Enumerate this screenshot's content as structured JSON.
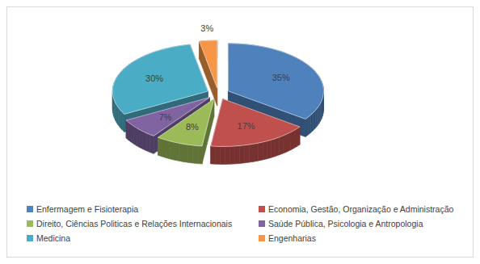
{
  "chart_data": {
    "type": "pie",
    "categories": [
      "Enfermagem e Fisioterapia",
      "Economia, Gestão, Organização e Administração",
      "Direito, Ciências Politicas e Relações Internacionais",
      "Saúde Pública, Psicologia e Antropologia",
      "Medicina",
      "Engenharias"
    ],
    "values": [
      35,
      17,
      8,
      7,
      30,
      3
    ],
    "value_labels": [
      "35%",
      "17%",
      "8%",
      "7%",
      "30%",
      "3%"
    ],
    "colors": [
      "#4f81bd",
      "#c0504d",
      "#9bbb59",
      "#8064a2",
      "#4bacc6",
      "#f79646"
    ],
    "data_labels": true,
    "legend": "bottom"
  }
}
